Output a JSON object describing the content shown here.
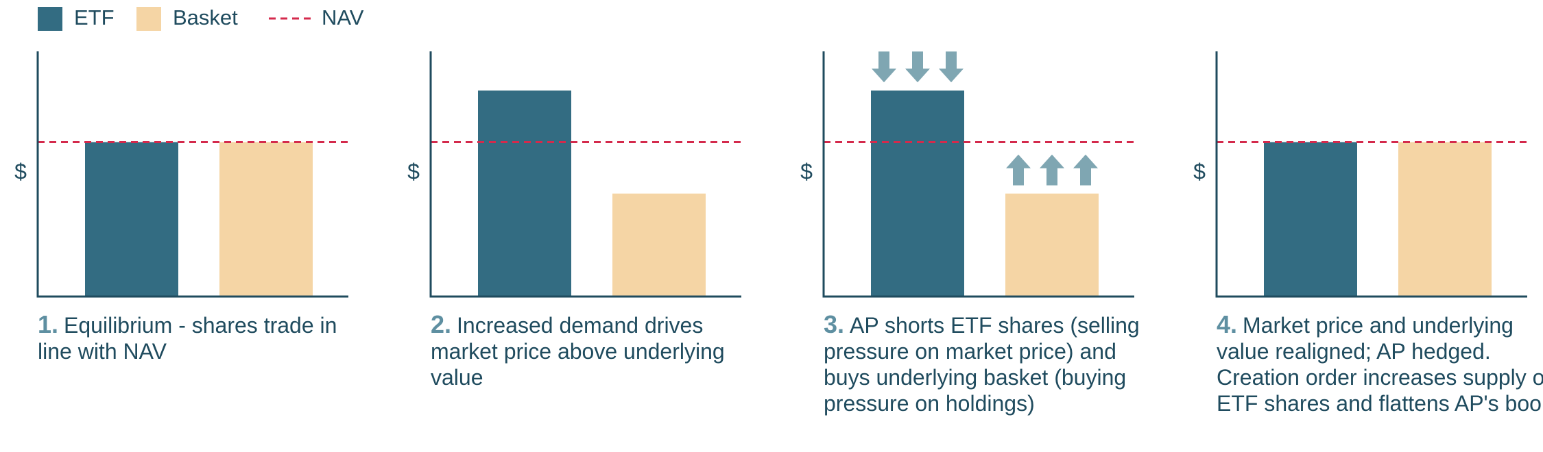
{
  "legend": [
    {
      "name": "ETF",
      "color": "#336c82"
    },
    {
      "name": "Basket",
      "color": "#f5d5a5"
    },
    {
      "name": "NAV",
      "color": "#d42a4c",
      "style": "dashed"
    }
  ],
  "chart_data": [
    {
      "type": "bar",
      "ylabel": "$",
      "ylim": [
        0,
        100
      ],
      "values": [
        63,
        63
      ],
      "nav": 63,
      "caption_number": "1.",
      "caption": "Equilibrium - shares trade in line with NAV"
    },
    {
      "type": "bar",
      "ylabel": "$",
      "ylim": [
        0,
        100
      ],
      "values": [
        84,
        42
      ],
      "nav": 63,
      "caption_number": "2.",
      "caption": "Increased demand drives market price above underlying value"
    },
    {
      "type": "bar",
      "ylabel": "$",
      "ylim": [
        0,
        100
      ],
      "values": [
        84,
        42
      ],
      "nav": 63,
      "arrows": [
        "down",
        "up"
      ],
      "caption_number": "3.",
      "caption": "AP shorts ETF shares (selling pressure on market price) and buys underlying basket (buying pressure on holdings)"
    },
    {
      "type": "bar",
      "ylabel": "$",
      "ylim": [
        0,
        100
      ],
      "values": [
        63,
        63
      ],
      "nav": 63,
      "caption_number": "4.",
      "caption": "Market price and underlying value realigned; AP hedged. Creation order increases supply of ETF shares and flattens AP's book"
    }
  ]
}
